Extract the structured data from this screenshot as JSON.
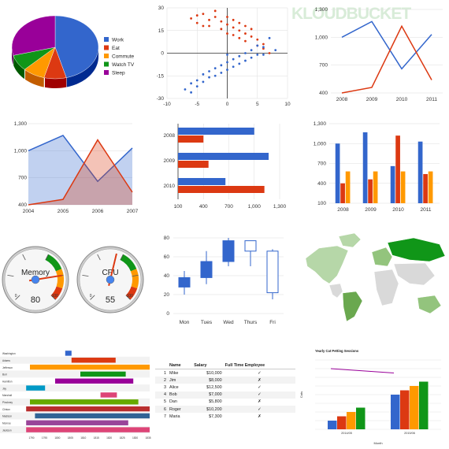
{
  "watermark": "KLOUDBUCKET",
  "colors": {
    "blue": "#3366cc",
    "red": "#dc3912",
    "orange": "#ff9900",
    "green": "#109618",
    "purple": "#990099",
    "teal": "#0099c6",
    "pink": "#dd4477"
  },
  "chart_data": [
    {
      "type": "pie",
      "title": "",
      "slices": [
        {
          "label": "Work",
          "value": 11,
          "color": "#3366cc"
        },
        {
          "label": "Eat",
          "value": 2,
          "color": "#dc3912"
        },
        {
          "label": "Commute",
          "value": 2,
          "color": "#ff9900"
        },
        {
          "label": "Watch TV",
          "value": 2,
          "color": "#109618"
        },
        {
          "label": "Sleep",
          "value": 7,
          "color": "#990099"
        }
      ],
      "legend": "right"
    },
    {
      "type": "scatter",
      "xlim": [
        -10,
        10
      ],
      "ylim": [
        -30,
        30
      ],
      "xticks": [
        "-10",
        "-5",
        "0",
        "5",
        "10"
      ],
      "yticks": [
        "30",
        "15",
        "0",
        "-15",
        "-30"
      ],
      "series": [
        {
          "color": "#dc3912",
          "points": [
            [
              -6,
              23
            ],
            [
              -5,
              20
            ],
            [
              -4,
              26
            ],
            [
              -3,
              22
            ],
            [
              -2,
              24
            ],
            [
              -1,
              21
            ],
            [
              0,
              19
            ],
            [
              1,
              17
            ],
            [
              2,
              15
            ],
            [
              3,
              13
            ],
            [
              4,
              11
            ],
            [
              5,
              9
            ],
            [
              -3,
              18
            ],
            [
              -1,
              16
            ],
            [
              1,
              12
            ],
            [
              3,
              8
            ],
            [
              5,
              5
            ],
            [
              -2,
              28
            ],
            [
              0,
              24
            ],
            [
              2,
              20
            ],
            [
              4,
              16
            ],
            [
              6,
              6
            ],
            [
              -4,
              18
            ],
            [
              -5,
              25
            ],
            [
              6,
              3
            ],
            [
              7,
              0
            ],
            [
              2,
              10
            ],
            [
              0,
              13
            ],
            [
              3,
              18
            ],
            [
              1,
              22
            ]
          ]
        },
        {
          "color": "#3366cc",
          "points": [
            [
              -7,
              -24
            ],
            [
              -6,
              -20
            ],
            [
              -5,
              -18
            ],
            [
              -4,
              -14
            ],
            [
              -3,
              -12
            ],
            [
              -2,
              -10
            ],
            [
              -1,
              -8
            ],
            [
              0,
              -6
            ],
            [
              1,
              -4
            ],
            [
              2,
              -2
            ],
            [
              3,
              0
            ],
            [
              4,
              2
            ],
            [
              5,
              5
            ],
            [
              6,
              4
            ],
            [
              7,
              10
            ],
            [
              -5,
              -22
            ],
            [
              -3,
              -16
            ],
            [
              -1,
              -13
            ],
            [
              1,
              -9
            ],
            [
              3,
              -5
            ],
            [
              5,
              -1
            ],
            [
              -4,
              -19
            ],
            [
              -2,
              -15
            ],
            [
              0,
              -11
            ],
            [
              2,
              -7
            ],
            [
              4,
              -3
            ],
            [
              6,
              -1
            ],
            [
              8,
              2
            ],
            [
              -6,
              -26
            ],
            [
              0,
              -1
            ]
          ]
        }
      ]
    },
    {
      "type": "line",
      "categories": [
        "2008",
        "2009",
        "2010",
        "2011"
      ],
      "ylim": [
        400,
        1300
      ],
      "yticks": [
        "1,300",
        "1,000",
        "700",
        "400"
      ],
      "series": [
        {
          "color": "#3366cc",
          "values": [
            1000,
            1170,
            660,
            1030
          ]
        },
        {
          "color": "#dc3912",
          "values": [
            400,
            460,
            1120,
            540
          ]
        }
      ]
    },
    {
      "type": "area",
      "categories": [
        "2004",
        "2005",
        "2006",
        "2007"
      ],
      "ylim": [
        400,
        1300
      ],
      "yticks": [
        "1,300",
        "1,000",
        "700",
        "400"
      ],
      "series": [
        {
          "color": "#3366cc",
          "values": [
            1000,
            1170,
            660,
            1030
          ]
        },
        {
          "color": "#dc3912",
          "values": [
            400,
            460,
            1120,
            540
          ]
        }
      ]
    },
    {
      "type": "bar",
      "categories": [
        "2008",
        "2009",
        "2010"
      ],
      "xlim": [
        100,
        1300
      ],
      "xticks": [
        "100",
        "400",
        "700",
        "1,000",
        "1,300"
      ],
      "series": [
        {
          "color": "#3366cc",
          "values": [
            1000,
            1170,
            660
          ]
        },
        {
          "color": "#dc3912",
          "values": [
            400,
            460,
            1120
          ]
        }
      ]
    },
    {
      "type": "bar",
      "categories": [
        "2008",
        "2009",
        "2010",
        "2011"
      ],
      "ylim": [
        100,
        1300
      ],
      "yticks": [
        "1,300",
        "1,000",
        "700",
        "400",
        "100"
      ],
      "series": [
        {
          "color": "#3366cc",
          "values": [
            1000,
            1170,
            660,
            1030
          ]
        },
        {
          "color": "#dc3912",
          "values": [
            400,
            460,
            1120,
            540
          ]
        },
        {
          "color": "#ff9900",
          "values": [
            580,
            580,
            580,
            580
          ]
        }
      ]
    },
    {
      "type": "gauge",
      "gauges": [
        {
          "label": "Memory",
          "value": 80
        },
        {
          "label": "CPU",
          "value": 55
        }
      ],
      "scale": [
        0,
        100
      ]
    },
    {
      "type": "candlestick",
      "categories": [
        "Mon",
        "Tues",
        "Wed",
        "Thurs",
        "Fri"
      ],
      "ylim": [
        0,
        80
      ],
      "yticks": [
        "80",
        "60",
        "40",
        "20",
        "0"
      ],
      "candles": [
        {
          "low": 20,
          "open": 28,
          "close": 38,
          "high": 45
        },
        {
          "low": 31,
          "open": 38,
          "close": 55,
          "high": 66
        },
        {
          "low": 50,
          "open": 55,
          "close": 77,
          "high": 80
        },
        {
          "low": 50,
          "open": 77,
          "close": 66,
          "high": 77
        },
        {
          "low": 15,
          "open": 66,
          "close": 22,
          "high": 68
        }
      ]
    },
    {
      "type": "map",
      "regions": [
        {
          "name": "North America",
          "shade": "light"
        },
        {
          "name": "Greenland",
          "shade": "light"
        },
        {
          "name": "Russia",
          "shade": "dark"
        },
        {
          "name": "Brazil",
          "shade": "medium"
        },
        {
          "name": "Australia",
          "shade": "medium"
        },
        {
          "name": "Europe",
          "shade": "medium"
        }
      ]
    },
    {
      "type": "timeline",
      "rows": [
        {
          "label": "Washington",
          "bars": [
            {
              "start": 0.33,
              "end": 0.38,
              "color": "#3366cc"
            }
          ]
        },
        {
          "label": "Adams",
          "bars": [
            {
              "start": 0.38,
              "end": 0.73,
              "color": "#dc3912"
            }
          ]
        },
        {
          "label": "Jefferson",
          "bars": [
            {
              "start": 0.05,
              "end": 1.0,
              "color": "#ff9900"
            }
          ]
        },
        {
          "label": "Burr",
          "bars": [
            {
              "start": 0.45,
              "end": 0.81,
              "color": "#109618"
            }
          ]
        },
        {
          "label": "Hamilton",
          "bars": [
            {
              "start": 0.25,
              "end": 0.87,
              "color": "#990099"
            }
          ]
        },
        {
          "label": "Jay",
          "bars": [
            {
              "start": 0.02,
              "end": 0.17,
              "color": "#0099c6"
            }
          ]
        },
        {
          "label": "Marshall",
          "bars": [
            {
              "start": 0.61,
              "end": 0.74,
              "color": "#dd4477"
            }
          ]
        },
        {
          "label": "Pinckney",
          "bars": [
            {
              "start": 0.05,
              "end": 0.91,
              "color": "#66aa00"
            }
          ]
        },
        {
          "label": "Clinton",
          "bars": [
            {
              "start": 0.02,
              "end": 1.0,
              "color": "#b82e2e"
            }
          ]
        },
        {
          "label": "Madison",
          "bars": [
            {
              "start": 0.09,
              "end": 1.0,
              "color": "#316395"
            }
          ]
        },
        {
          "label": "Monroe",
          "bars": [
            {
              "start": 0.02,
              "end": 0.83,
              "color": "#994499"
            }
          ]
        },
        {
          "label": "Jackson",
          "bars": [
            {
              "start": 0.02,
              "end": 1.0,
              "color": "#dd4477"
            }
          ]
        }
      ],
      "axis": [
        "1790",
        "1795",
        "1800",
        "1805",
        "1810",
        "1815",
        "1820",
        "1825",
        "1830",
        "1835"
      ]
    },
    {
      "type": "table",
      "columns": [
        "Name",
        "Salary",
        "Full Time Employee"
      ],
      "rows": [
        [
          "1",
          "Mike",
          "$10,000",
          "✓"
        ],
        [
          "2",
          "Jim",
          "$8,000",
          "✗"
        ],
        [
          "3",
          "Alice",
          "$12,500",
          "✓"
        ],
        [
          "4",
          "Bob",
          "$7,000",
          "✓"
        ],
        [
          "5",
          "Dan",
          "$5,800",
          "✗"
        ],
        [
          "6",
          "Roger",
          "$10,200",
          "✓"
        ],
        [
          "7",
          "Maria",
          "$7,300",
          "✗"
        ]
      ]
    },
    {
      "type": "bar",
      "title": "Yearly Cat Petting Sessions",
      "xlabel": "Month",
      "ylabel": "Cats",
      "categories": [
        "2014/05",
        "2015/06"
      ],
      "series": [
        {
          "color": "#3366cc",
          "values": [
            100,
            400
          ]
        },
        {
          "color": "#dc3912",
          "values": [
            150,
            450
          ]
        },
        {
          "color": "#ff9900",
          "values": [
            200,
            500
          ]
        },
        {
          "color": "#109618",
          "values": [
            250,
            550
          ]
        }
      ],
      "line": {
        "color": "#990099",
        "values": [
          700,
          650
        ]
      },
      "ylim": [
        0,
        800
      ]
    }
  ]
}
